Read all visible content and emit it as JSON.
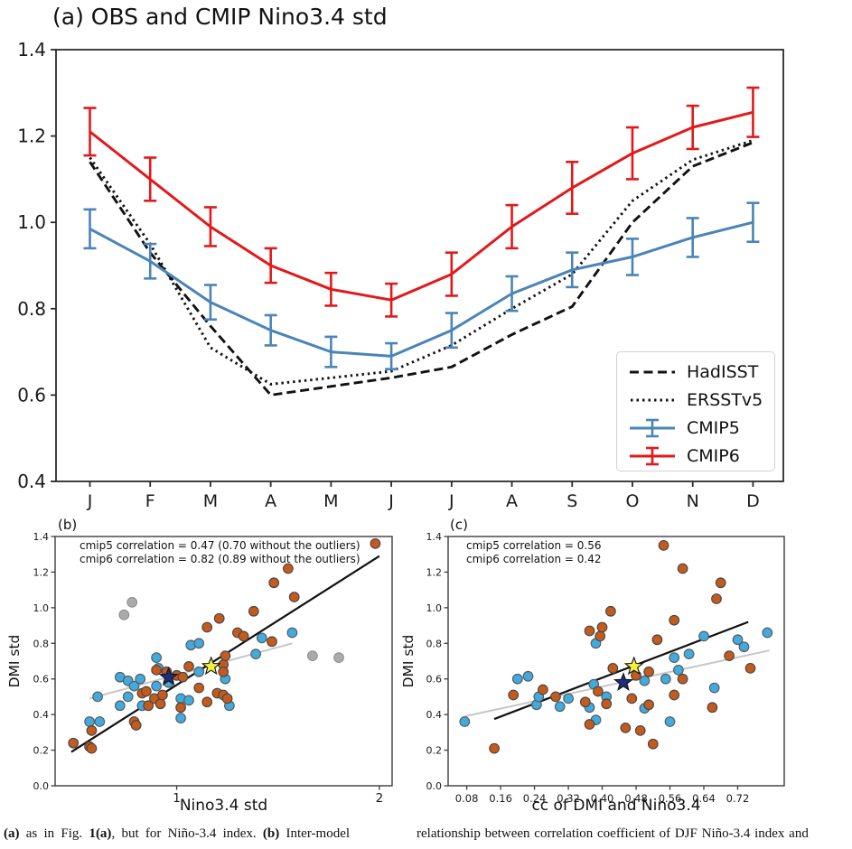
{
  "figure_title": "(a) OBS and CMIP Nino3.4 std",
  "colors": {
    "cmip5_line": "#4a84b8",
    "cmip6_line": "#e2191b",
    "obs_line": "#111111",
    "cmip5_dot": "#41aade",
    "cmip6_dot": "#c45b1d",
    "outlier_dot": "#ababab",
    "cmip5_star": "#1e2d7d",
    "cmip6_star": "#f3f13c",
    "fit_black": "#111111",
    "fit_gray": "#c7c7c7"
  },
  "chart_data": [
    {
      "id": "a",
      "type": "line",
      "title": "(a) OBS and CMIP Nino3.4 std",
      "categories": [
        "J",
        "F",
        "M",
        "A",
        "M",
        "J",
        "J",
        "A",
        "S",
        "O",
        "N",
        "D"
      ],
      "ylim": [
        0.4,
        1.4
      ],
      "yticks": [
        1.4,
        1.2,
        1.0,
        0.8,
        0.6,
        0.4
      ],
      "grid": false,
      "legend_position": "lower right",
      "series": [
        {
          "name": "HadISST",
          "line_style": "dashed",
          "color": "#111111",
          "values": [
            1.14,
            0.93,
            0.76,
            0.6,
            0.62,
            0.64,
            0.665,
            0.74,
            0.805,
            1.0,
            1.13,
            1.185
          ]
        },
        {
          "name": "ERSSTv5",
          "line_style": "dotted",
          "color": "#111111",
          "values": [
            1.15,
            0.95,
            0.71,
            0.625,
            0.64,
            0.655,
            0.715,
            0.8,
            0.88,
            1.05,
            1.145,
            1.19
          ]
        },
        {
          "name": "CMIP5",
          "line_style": "solid",
          "color": "#4a84b8",
          "values": [
            0.985,
            0.91,
            0.815,
            0.75,
            0.7,
            0.69,
            0.75,
            0.835,
            0.89,
            0.92,
            0.965,
            1.0
          ],
          "errors": [
            0.045,
            0.04,
            0.04,
            0.035,
            0.035,
            0.03,
            0.04,
            0.04,
            0.04,
            0.042,
            0.045,
            0.045
          ]
        },
        {
          "name": "CMIP6",
          "line_style": "solid",
          "color": "#e2191b",
          "values": [
            1.21,
            1.1,
            0.99,
            0.9,
            0.845,
            0.82,
            0.88,
            0.99,
            1.08,
            1.16,
            1.22,
            1.255
          ],
          "errors": [
            0.055,
            0.05,
            0.045,
            0.04,
            0.038,
            0.038,
            0.05,
            0.05,
            0.06,
            0.06,
            0.05,
            0.057
          ]
        }
      ]
    },
    {
      "id": "b",
      "type": "scatter",
      "label": "(b)",
      "xlabel": "Nino3.4 std",
      "ylabel": "DMI std",
      "xlim": [
        0.4,
        2.063
      ],
      "ylim": [
        0,
        1.4
      ],
      "xticks": [
        1,
        2
      ],
      "yticks": [
        0.0,
        0.2,
        0.4,
        0.6,
        0.8,
        1.0,
        1.2,
        1.4
      ],
      "annotations": [
        "cmip5 correlation = 0.47 (0.70 without the outliers)",
        "cmip6 correlation = 0.82 (0.89 without the outliers)"
      ],
      "fit_lines": [
        {
          "name": "cmip5-fit",
          "color": "#c7c7c7",
          "x1": 0.57,
          "y1": 0.49,
          "x2": 1.57,
          "y2": 0.8
        },
        {
          "name": "cmip6-fit",
          "color": "#111111",
          "x1": 0.48,
          "y1": 0.19,
          "x2": 2.0,
          "y2": 1.29
        }
      ],
      "series": [
        {
          "name": "outliers",
          "marker": "circle",
          "color": "#ababab",
          "edge": "#8f8f8f",
          "points": [
            [
              0.74,
              0.96
            ],
            [
              0.78,
              1.03
            ],
            [
              1.67,
              0.73
            ],
            [
              1.8,
              0.72
            ]
          ]
        },
        {
          "name": "cmip5",
          "marker": "circle",
          "color": "#41aade",
          "edge": "#5a5a5a",
          "points": [
            [
              0.57,
              0.36
            ],
            [
              0.61,
              0.5
            ],
            [
              0.62,
              0.36
            ],
            [
              0.72,
              0.61
            ],
            [
              0.72,
              0.45
            ],
            [
              0.76,
              0.59
            ],
            [
              0.76,
              0.5
            ],
            [
              0.79,
              0.56
            ],
            [
              0.82,
              0.6
            ],
            [
              0.83,
              0.45
            ],
            [
              0.9,
              0.72
            ],
            [
              0.9,
              0.56
            ],
            [
              0.91,
              0.66
            ],
            [
              0.96,
              0.58
            ],
            [
              1.02,
              0.38
            ],
            [
              1.02,
              0.49
            ],
            [
              1.06,
              0.48
            ],
            [
              1.07,
              0.79
            ],
            [
              1.11,
              0.8
            ],
            [
              1.11,
              0.64
            ],
            [
              1.24,
              0.6
            ],
            [
              1.26,
              0.45
            ],
            [
              1.39,
              0.74
            ],
            [
              1.42,
              0.83
            ],
            [
              1.57,
              0.86
            ]
          ]
        },
        {
          "name": "cmip6",
          "marker": "circle",
          "color": "#c45b1d",
          "edge": "#474747",
          "points": [
            [
              0.49,
              0.24
            ],
            [
              0.57,
              0.22
            ],
            [
              0.58,
              0.31
            ],
            [
              0.58,
              0.21
            ],
            [
              0.79,
              0.36
            ],
            [
              0.8,
              0.34
            ],
            [
              0.83,
              0.52
            ],
            [
              0.85,
              0.53
            ],
            [
              0.86,
              0.45
            ],
            [
              0.89,
              0.49
            ],
            [
              0.9,
              0.65
            ],
            [
              0.92,
              0.46
            ],
            [
              0.93,
              0.51
            ],
            [
              0.95,
              0.64
            ],
            [
              1.0,
              0.62
            ],
            [
              1.02,
              0.44
            ],
            [
              1.03,
              0.61
            ],
            [
              1.06,
              0.67
            ],
            [
              1.11,
              0.55
            ],
            [
              1.15,
              0.89
            ],
            [
              1.15,
              0.47
            ],
            [
              1.2,
              0.52
            ],
            [
              1.21,
              0.94
            ],
            [
              1.23,
              0.68
            ],
            [
              1.23,
              0.64
            ],
            [
              1.23,
              0.51
            ],
            [
              1.24,
              0.73
            ],
            [
              1.25,
              0.49
            ],
            [
              1.3,
              0.86
            ],
            [
              1.33,
              0.84
            ],
            [
              1.38,
              0.98
            ],
            [
              1.47,
              0.81
            ],
            [
              1.48,
              1.14
            ],
            [
              1.55,
              1.22
            ],
            [
              1.58,
              1.06
            ],
            [
              1.98,
              1.36
            ]
          ]
        },
        {
          "name": "cmip5-mean",
          "marker": "star",
          "color": "#1e2d7d",
          "edge": "#111111",
          "points": [
            [
              0.96,
              0.61
            ]
          ]
        },
        {
          "name": "cmip6-mean",
          "marker": "star",
          "color": "#f3f13c",
          "edge": "#111111",
          "points": [
            [
              1.17,
              0.67
            ]
          ]
        }
      ]
    },
    {
      "id": "c",
      "type": "scatter",
      "label": "(c)",
      "xlabel": "cc of DMI and Nino3.4",
      "ylabel": "DMI std",
      "xlim": [
        0.036,
        0.83
      ],
      "ylim": [
        0,
        1.4
      ],
      "xticks": [
        0.08,
        0.16,
        0.24,
        0.32,
        0.4,
        0.48,
        0.56,
        0.64,
        0.72
      ],
      "yticks": [
        0.0,
        0.2,
        0.4,
        0.6,
        0.8,
        1.0,
        1.2,
        1.4
      ],
      "annotations": [
        "cmip5 correlation = 0.56",
        "cmip6 correlation = 0.42"
      ],
      "fit_lines": [
        {
          "name": "cmip5-fit",
          "color": "#c7c7c7",
          "x1": 0.075,
          "y1": 0.39,
          "x2": 0.795,
          "y2": 0.76
        },
        {
          "name": "cmip6-fit",
          "color": "#111111",
          "x1": 0.145,
          "y1": 0.375,
          "x2": 0.745,
          "y2": 0.92
        }
      ],
      "series": [
        {
          "name": "cmip5",
          "marker": "circle",
          "color": "#41aade",
          "edge": "#5a5a5a",
          "points": [
            [
              0.075,
              0.36
            ],
            [
              0.2,
              0.6
            ],
            [
              0.225,
              0.615
            ],
            [
              0.245,
              0.455
            ],
            [
              0.25,
              0.5
            ],
            [
              0.3,
              0.445
            ],
            [
              0.32,
              0.49
            ],
            [
              0.37,
              0.44
            ],
            [
              0.38,
              0.57
            ],
            [
              0.385,
              0.8
            ],
            [
              0.385,
              0.37
            ],
            [
              0.41,
              0.5
            ],
            [
              0.5,
              0.59
            ],
            [
              0.5,
              0.435
            ],
            [
              0.55,
              0.6
            ],
            [
              0.56,
              0.36
            ],
            [
              0.57,
              0.72
            ],
            [
              0.58,
              0.65
            ],
            [
              0.605,
              0.74
            ],
            [
              0.64,
              0.84
            ],
            [
              0.665,
              0.55
            ],
            [
              0.72,
              0.82
            ],
            [
              0.735,
              0.78
            ],
            [
              0.79,
              0.86
            ]
          ]
        },
        {
          "name": "cmip6",
          "marker": "circle",
          "color": "#c45b1d",
          "edge": "#474747",
          "points": [
            [
              0.145,
              0.21
            ],
            [
              0.19,
              0.51
            ],
            [
              0.26,
              0.54
            ],
            [
              0.29,
              0.5
            ],
            [
              0.36,
              0.47
            ],
            [
              0.37,
              0.87
            ],
            [
              0.37,
              0.345
            ],
            [
              0.39,
              0.53
            ],
            [
              0.395,
              0.84
            ],
            [
              0.4,
              0.89
            ],
            [
              0.41,
              0.46
            ],
            [
              0.42,
              0.98
            ],
            [
              0.425,
              0.66
            ],
            [
              0.455,
              0.325
            ],
            [
              0.47,
              0.49
            ],
            [
              0.48,
              0.62
            ],
            [
              0.49,
              0.31
            ],
            [
              0.51,
              0.64
            ],
            [
              0.51,
              0.455
            ],
            [
              0.52,
              0.235
            ],
            [
              0.53,
              0.82
            ],
            [
              0.545,
              1.35
            ],
            [
              0.57,
              0.93
            ],
            [
              0.57,
              0.51
            ],
            [
              0.59,
              1.22
            ],
            [
              0.59,
              0.6
            ],
            [
              0.66,
              0.44
            ],
            [
              0.67,
              1.05
            ],
            [
              0.68,
              1.14
            ],
            [
              0.7,
              0.73
            ],
            [
              0.75,
              0.66
            ]
          ]
        },
        {
          "name": "cmip5-mean",
          "marker": "star",
          "color": "#1e2d7d",
          "edge": "#111111",
          "points": [
            [
              0.45,
              0.58
            ]
          ]
        },
        {
          "name": "cmip6-mean",
          "marker": "star",
          "color": "#f3f13c",
          "edge": "#111111",
          "points": [
            [
              0.475,
              0.67
            ]
          ]
        }
      ]
    }
  ],
  "legend": {
    "items": [
      "HadISST",
      "ERSSTv5",
      "CMIP5",
      "CMIP6"
    ]
  },
  "caption": {
    "left_parts": [
      {
        "text": "(a)",
        "bold": true
      },
      {
        "text": " as in Fig. ",
        "bold": false
      },
      {
        "text": "1(a)",
        "bold": true
      },
      {
        "text": ", but for Niño-3.4 index. ",
        "bold": false
      },
      {
        "text": "(b)",
        "bold": true
      },
      {
        "text": " Inter-model",
        "bold": false
      }
    ],
    "right": "relationship between correlation coefficient of DJF Niño-3.4 index and"
  }
}
